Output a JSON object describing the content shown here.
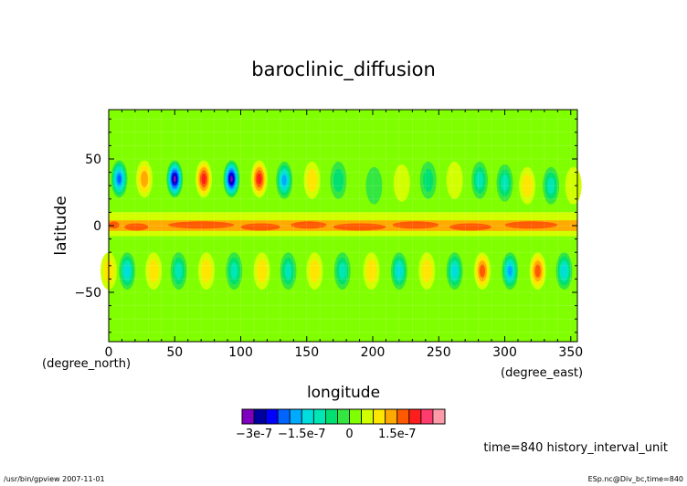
{
  "chart_data": {
    "type": "heatmap",
    "title": "baroclinic_diffusion",
    "xlabel": "longitude",
    "ylabel": "latitude",
    "x_unit": "(degree_east)",
    "y_unit": "(degree_north)",
    "xlim": [
      0,
      355
    ],
    "ylim": [
      -87,
      87
    ],
    "x_ticks": [
      "0",
      "50",
      "100",
      "150",
      "200",
      "250",
      "300",
      "350"
    ],
    "y_ticks": [
      "50",
      "0",
      "−50"
    ],
    "colorbar": {
      "labels": [
        "−3e-7",
        "−1.5e-7",
        "0",
        "1.5e-7"
      ],
      "label_values": [
        -3e-07,
        -1.5e-07,
        0,
        1.5e-07
      ],
      "colors": [
        "#7f00bf",
        "#0000a0",
        "#0000ff",
        "#0064ff",
        "#00aaff",
        "#00dddd",
        "#00e6b4",
        "#00e070",
        "#33e640",
        "#80ff00",
        "#d2ff00",
        "#ffe600",
        "#ffaa00",
        "#ff5a00",
        "#ff1e1e",
        "#ff3c6e",
        "#ff9aa8"
      ]
    },
    "background_value": 2.2e-08,
    "features": [
      {
        "kind": "cell",
        "lon": 8,
        "lat": 35,
        "value": -2e-07
      },
      {
        "kind": "cell",
        "lon": 27,
        "lat": 35,
        "value": 1.4e-07
      },
      {
        "kind": "cell",
        "lon": 50,
        "lat": 35,
        "value": -3.1e-07
      },
      {
        "kind": "cell",
        "lon": 72,
        "lat": 35,
        "value": 2e-07
      },
      {
        "kind": "cell",
        "lon": 93,
        "lat": 35,
        "value": -3.2e-07
      },
      {
        "kind": "cell",
        "lon": 114,
        "lat": 35,
        "value": 1.9e-07
      },
      {
        "kind": "cell",
        "lon": 133,
        "lat": 34,
        "value": -1.6e-07
      },
      {
        "kind": "cell",
        "lon": 154,
        "lat": 34,
        "value": 1e-07
      },
      {
        "kind": "cell",
        "lon": 174,
        "lat": 34,
        "value": -6e-08
      },
      {
        "kind": "cell",
        "lon": 201,
        "lat": 30,
        "value": -2e-08
      },
      {
        "kind": "cell",
        "lon": 222,
        "lat": 32,
        "value": 4e-08
      },
      {
        "kind": "cell",
        "lon": 242,
        "lat": 34,
        "value": -4e-08
      },
      {
        "kind": "cell",
        "lon": 262,
        "lat": 34,
        "value": 7e-08
      },
      {
        "kind": "cell",
        "lon": 281,
        "lat": 34,
        "value": -8e-08
      },
      {
        "kind": "cell",
        "lon": 300,
        "lat": 32,
        "value": -1e-07
      },
      {
        "kind": "cell",
        "lon": 317,
        "lat": 30,
        "value": 1e-07
      },
      {
        "kind": "cell",
        "lon": 335,
        "lat": 30,
        "value": -1e-07
      },
      {
        "kind": "cell",
        "lon": 352,
        "lat": 30,
        "value": 5e-08
      },
      {
        "kind": "cell",
        "lon": 0,
        "lat": -34,
        "value": 1e-07
      },
      {
        "kind": "cell",
        "lon": 14,
        "lat": -34,
        "value": -1.2e-07
      },
      {
        "kind": "cell",
        "lon": 34,
        "lat": -34,
        "value": 1e-07
      },
      {
        "kind": "cell",
        "lon": 53,
        "lat": -34,
        "value": -1e-07
      },
      {
        "kind": "cell",
        "lon": 74,
        "lat": -34,
        "value": 1e-07
      },
      {
        "kind": "cell",
        "lon": 95,
        "lat": -34,
        "value": -1.1e-07
      },
      {
        "kind": "cell",
        "lon": 116,
        "lat": -34,
        "value": 1e-07
      },
      {
        "kind": "cell",
        "lon": 136,
        "lat": -34,
        "value": -1.1e-07
      },
      {
        "kind": "cell",
        "lon": 156,
        "lat": -34,
        "value": 1e-07
      },
      {
        "kind": "cell",
        "lon": 177,
        "lat": -34,
        "value": -1.1e-07
      },
      {
        "kind": "cell",
        "lon": 199,
        "lat": -34,
        "value": 1e-07
      },
      {
        "kind": "cell",
        "lon": 220,
        "lat": -34,
        "value": -1.2e-07
      },
      {
        "kind": "cell",
        "lon": 241,
        "lat": -34,
        "value": 1.1e-07
      },
      {
        "kind": "cell",
        "lon": 262,
        "lat": -34,
        "value": -1.4e-07
      },
      {
        "kind": "cell",
        "lon": 283,
        "lat": -34,
        "value": 1.6e-07
      },
      {
        "kind": "cell",
        "lon": 304,
        "lat": -34,
        "value": -1.6e-07
      },
      {
        "kind": "cell",
        "lon": 325,
        "lat": -34,
        "value": 1.5e-07
      },
      {
        "kind": "cell",
        "lon": 345,
        "lat": -34,
        "value": -1.5e-07
      },
      {
        "kind": "band",
        "lon": [
          0,
          355
        ],
        "lat": [
          -8,
          10
        ],
        "value": 6e-08
      },
      {
        "kind": "band",
        "lon": [
          0,
          355
        ],
        "lat": [
          -4,
          4
        ],
        "value": 1.2e-07
      }
    ]
  },
  "annotations": {
    "time_label": "time=840 history_interval_unit",
    "footer_left": "/usr/bin/gpview   2007-11-01",
    "footer_right": "ESp.nc@Div_bc,time=840"
  }
}
